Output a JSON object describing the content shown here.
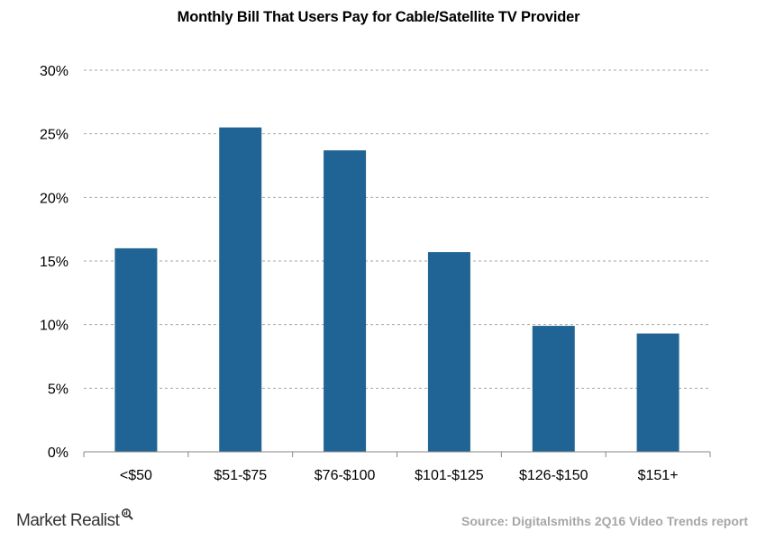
{
  "chart_data": {
    "type": "bar",
    "title": "Monthly Bill That Users Pay for Cable/Satellite TV Provider",
    "categories": [
      "<$50",
      "$51-$75",
      "$76-$100",
      "$101-$125",
      "$126-$150",
      "$151+"
    ],
    "values": [
      16.0,
      25.5,
      23.7,
      15.7,
      9.9,
      9.3
    ],
    "ylim": [
      0,
      30
    ],
    "yticks": [
      0,
      5,
      10,
      15,
      20,
      25,
      30
    ],
    "ytick_format": "%",
    "bar_color": "#1f6494",
    "grid": "dashed horizontal",
    "xlabel": "",
    "ylabel": ""
  },
  "footer": {
    "brand": "Market Realist",
    "source": "Source: Digitalsmiths 2Q16 Video Trends report"
  }
}
